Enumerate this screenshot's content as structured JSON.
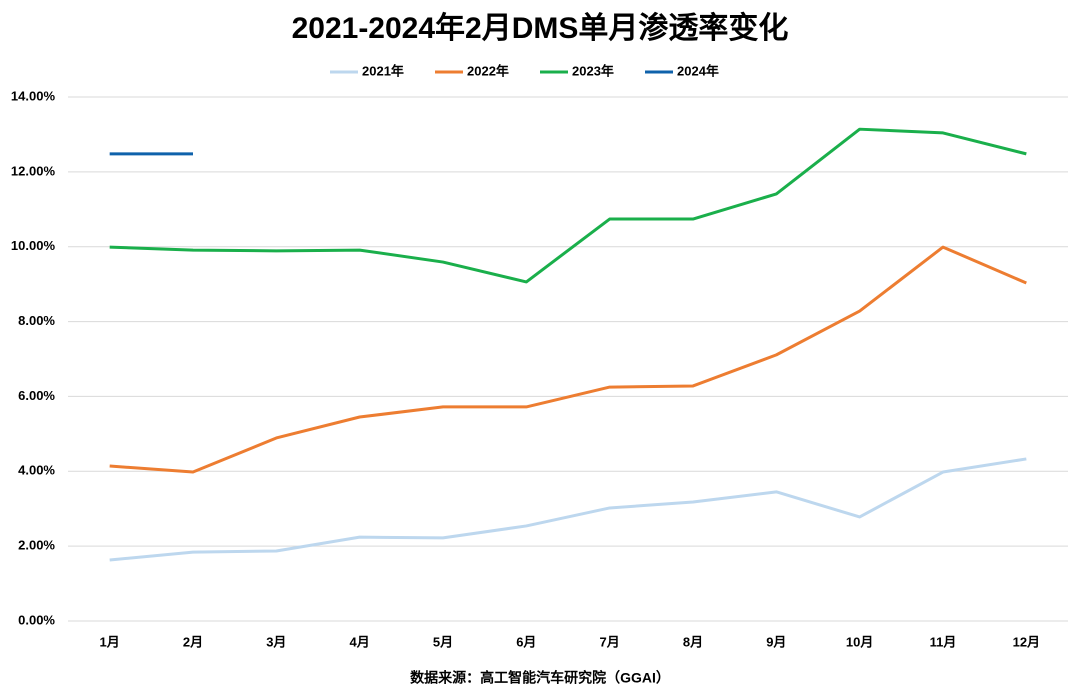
{
  "chart_data": {
    "type": "line",
    "title": "2021-2024年2月DMS单月渗透率变化",
    "categories": [
      "1月",
      "2月",
      "3月",
      "4月",
      "5月",
      "6月",
      "7月",
      "8月",
      "9月",
      "10月",
      "11月",
      "12月"
    ],
    "series": [
      {
        "name": "2021年",
        "color": "#bdd7ee",
        "values": [
          1.63,
          1.84,
          1.87,
          2.24,
          2.22,
          2.54,
          3.02,
          3.18,
          3.45,
          2.78,
          3.98,
          4.33
        ]
      },
      {
        "name": "2022年",
        "color": "#ed7d31",
        "values": [
          4.14,
          3.98,
          4.89,
          5.45,
          5.72,
          5.72,
          6.25,
          6.28,
          7.11,
          8.28,
          9.99,
          9.03
        ]
      },
      {
        "name": "2023年",
        "color": "#1aaf4b",
        "values": [
          9.99,
          9.91,
          9.89,
          9.91,
          9.59,
          9.06,
          10.74,
          10.74,
          11.41,
          13.14,
          13.04,
          12.48
        ]
      },
      {
        "name": "2024年",
        "color": "#0f62ab",
        "values": [
          12.48,
          12.48,
          null,
          null,
          null,
          null,
          null,
          null,
          null,
          null,
          null,
          null
        ]
      }
    ],
    "ylim": [
      0,
      14
    ],
    "yticks": [
      {
        "value": 0,
        "label": "0.00%"
      },
      {
        "value": 2,
        "label": "2.00%"
      },
      {
        "value": 4,
        "label": "4.00%"
      },
      {
        "value": 6,
        "label": "6.00%"
      },
      {
        "value": 8,
        "label": "8.00%"
      },
      {
        "value": 10,
        "label": "10.00%"
      },
      {
        "value": 12,
        "label": "12.00%"
      },
      {
        "value": 14,
        "label": "14.00%"
      }
    ],
    "grid": true,
    "legend": "top",
    "source": "数据来源：高工智能汽车研究院（GGAI）"
  }
}
